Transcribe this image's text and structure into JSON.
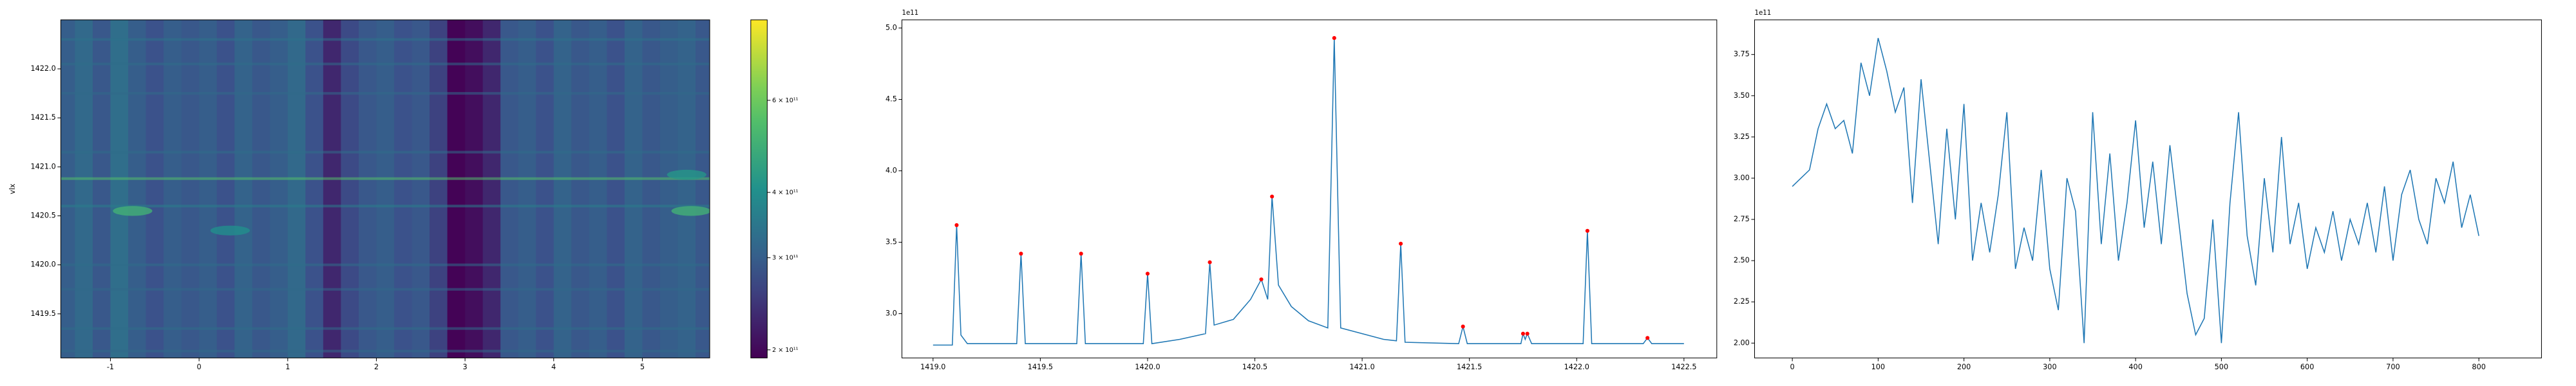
{
  "chart_data": [
    {
      "type": "heatmap",
      "ylabel": "vlx",
      "colormap": "viridis",
      "cscale": "log",
      "xlim": [
        -1.56,
        5.76
      ],
      "ylim": [
        1419.05,
        1422.5
      ],
      "xticks": [
        -1,
        0,
        1,
        2,
        3,
        4,
        5
      ],
      "yticks": [
        {
          "value": 1419.5,
          "label": "1419.5"
        },
        {
          "value": 1420.0,
          "label": "1420.0"
        },
        {
          "value": 1420.5,
          "label": "1420.5"
        },
        {
          "value": 1421.0,
          "label": "1421.0"
        },
        {
          "value": 1421.5,
          "label": "1421.5"
        },
        {
          "value": 1422.0,
          "label": "1422.0"
        }
      ],
      "clim": [
        193000000000.0,
        855000000000.0
      ],
      "cticks": [
        {
          "value": 200000000000.0,
          "label": "2 × 10¹¹"
        },
        {
          "value": 300000000000.0,
          "label": "3 × 10¹¹"
        },
        {
          "value": 400000000000.0,
          "label": "4 × 10¹¹"
        },
        {
          "value": 600000000000.0,
          "label": "6 × 10¹¹"
        }
      ],
      "columns": {
        "edges": [
          -1.6,
          -1.4,
          -1.2,
          -1.0,
          -0.8,
          -0.6,
          -0.4,
          -0.2,
          0.0,
          0.2,
          0.4,
          0.6,
          0.8,
          1.0,
          1.2,
          1.4,
          1.6,
          1.8,
          2.0,
          2.2,
          2.4,
          2.6,
          2.8,
          3.0,
          3.2,
          3.4,
          3.6,
          3.8,
          4.0,
          4.2,
          4.4,
          4.6,
          4.8,
          5.0,
          5.2,
          5.4,
          5.6,
          5.8
        ],
        "values": [
          300000000000.0,
          320000000000.0,
          290000000000.0,
          330000000000.0,
          300000000000.0,
          280000000000.0,
          300000000000.0,
          290000000000.0,
          300000000000.0,
          280000000000.0,
          310000000000.0,
          290000000000.0,
          300000000000.0,
          320000000000.0,
          280000000000.0,
          230000000000.0,
          270000000000.0,
          290000000000.0,
          300000000000.0,
          280000000000.0,
          290000000000.0,
          260000000000.0,
          195000000000.0,
          205000000000.0,
          230000000000.0,
          290000000000.0,
          300000000000.0,
          280000000000.0,
          310000000000.0,
          290000000000.0,
          300000000000.0,
          280000000000.0,
          310000000000.0,
          290000000000.0,
          300000000000.0,
          310000000000.0,
          290000000000.0
        ]
      },
      "rows": {
        "y": [
          1422.3,
          1422.05,
          1421.75,
          1421.15,
          1420.88,
          1420.6,
          1420.0,
          1419.75,
          1419.35,
          1419.12
        ],
        "values": [
          340000000000.0,
          330000000000.0,
          320000000000.0,
          330000000000.0,
          550000000000.0,
          360000000000.0,
          330000000000.0,
          320000000000.0,
          330000000000.0,
          320000000000.0
        ]
      },
      "blobs": {
        "x": [
          -0.75,
          0.35,
          5.55,
          5.5
        ],
        "y": [
          1420.55,
          1420.35,
          1420.55,
          1420.92
        ],
        "values": [
          500000000000.0,
          400000000000.0,
          500000000000.0,
          420000000000.0
        ]
      }
    },
    {
      "type": "line",
      "offset_text": "1e11",
      "xlim": [
        1418.855,
        1422.653
      ],
      "ylim": [
        269000000000.0,
        505700000000.0
      ],
      "xticks": [
        {
          "value": 1419.0,
          "label": "1419.0"
        },
        1419.5,
        {
          "value": 1420.0,
          "label": "1420.0"
        },
        1420.5,
        {
          "value": 1421.0,
          "label": "1421.0"
        },
        1421.5,
        {
          "value": 1422.0,
          "label": "1422.0"
        },
        1422.5
      ],
      "yticks": [
        {
          "value": 300000000000.0,
          "label": "3.0"
        },
        {
          "value": 350000000000.0,
          "label": "3.5"
        },
        {
          "value": 400000000000.0,
          "label": "4.0"
        },
        {
          "value": 450000000000.0,
          "label": "4.5"
        },
        {
          "value": 500000000000.0,
          "label": "5.0"
        }
      ],
      "series": [
        {
          "color": "#1f77b4",
          "mode": "line",
          "x": [
            1419.0,
            1419.09,
            1419.11,
            1419.13,
            1419.16,
            1419.39,
            1419.41,
            1419.43,
            1419.67,
            1419.69,
            1419.71,
            1419.98,
            1420.0,
            1420.02,
            1420.15,
            1420.27,
            1420.29,
            1420.31,
            1420.4,
            1420.48,
            1420.53,
            1420.56,
            1420.58,
            1420.61,
            1420.67,
            1420.75,
            1420.84,
            1420.87,
            1420.9,
            1421.0,
            1421.1,
            1421.16,
            1421.18,
            1421.2,
            1421.45,
            1421.47,
            1421.49,
            1421.74,
            1421.75,
            1421.76,
            1421.77,
            1421.79,
            1422.03,
            1422.05,
            1422.07,
            1422.31,
            1422.33,
            1422.35,
            1422.5
          ],
          "values": [
            278000000000.0,
            278000000000.0,
            362000000000.0,
            285000000000.0,
            279000000000.0,
            279000000000.0,
            342000000000.0,
            279000000000.0,
            279000000000.0,
            342000000000.0,
            279000000000.0,
            279000000000.0,
            328000000000.0,
            279000000000.0,
            282000000000.0,
            286000000000.0,
            336000000000.0,
            292000000000.0,
            296000000000.0,
            310000000000.0,
            324000000000.0,
            310000000000.0,
            382000000000.0,
            320000000000.0,
            305000000000.0,
            295000000000.0,
            290000000000.0,
            493000000000.0,
            290000000000.0,
            286000000000.0,
            282000000000.0,
            281000000000.0,
            349000000000.0,
            280000000000.0,
            279000000000.0,
            291000000000.0,
            279000000000.0,
            279000000000.0,
            286000000000.0,
            282000000000.0,
            286000000000.0,
            279000000000.0,
            279000000000.0,
            358000000000.0,
            279000000000.0,
            279000000000.0,
            283000000000.0,
            279000000000.0,
            279000000000.0
          ]
        },
        {
          "color": "red",
          "mode": "markers",
          "x": [
            1419.11,
            1419.41,
            1419.69,
            1420.0,
            1420.29,
            1420.53,
            1420.58,
            1420.87,
            1421.18,
            1421.47,
            1421.75,
            1421.77,
            1422.05,
            1422.33
          ],
          "values": [
            362000000000.0,
            342000000000.0,
            342000000000.0,
            328000000000.0,
            336000000000.0,
            324000000000.0,
            382000000000.0,
            493000000000.0,
            349000000000.0,
            291000000000.0,
            286000000000.0,
            286000000000.0,
            358000000000.0,
            283000000000.0
          ]
        }
      ]
    },
    {
      "type": "line",
      "offset_text": "1e11",
      "xlim": [
        -44,
        873
      ],
      "ylim": [
        191000000000.0,
        396000000000.0
      ],
      "xticks": [
        0,
        100,
        200,
        300,
        400,
        500,
        600,
        700,
        800
      ],
      "yticks": [
        {
          "value": 200000000000.0,
          "label": "2.00"
        },
        {
          "value": 225000000000.0,
          "label": "2.25"
        },
        {
          "value": 250000000000.0,
          "label": "2.50"
        },
        {
          "value": 275000000000.0,
          "label": "2.75"
        },
        {
          "value": 300000000000.0,
          "label": "3.00"
        },
        {
          "value": 325000000000.0,
          "label": "3.25"
        },
        {
          "value": 350000000000.0,
          "label": "3.50"
        },
        {
          "value": 375000000000.0,
          "label": "3.75"
        }
      ],
      "series": [
        {
          "color": "#1f77b4",
          "mode": "line",
          "x": [
            0,
            10,
            20,
            30,
            40,
            50,
            60,
            70,
            80,
            90,
            100,
            110,
            120,
            130,
            140,
            150,
            160,
            170,
            180,
            190,
            200,
            210,
            220,
            230,
            240,
            250,
            260,
            270,
            280,
            290,
            300,
            310,
            320,
            330,
            340,
            350,
            360,
            370,
            380,
            390,
            400,
            410,
            420,
            430,
            440,
            450,
            460,
            470,
            480,
            490,
            500,
            510,
            520,
            530,
            540,
            550,
            560,
            570,
            580,
            590,
            600,
            610,
            620,
            630,
            640,
            650,
            660,
            670,
            680,
            690,
            700,
            710,
            720,
            730,
            740,
            750,
            760,
            770,
            780,
            790,
            800
          ],
          "values": [
            295000000000.0,
            300000000000.0,
            305000000000.0,
            330000000000.0,
            345000000000.0,
            330000000000.0,
            335000000000.0,
            315000000000.0,
            370000000000.0,
            350000000000.0,
            385000000000.0,
            365000000000.0,
            340000000000.0,
            355000000000.0,
            285000000000.0,
            360000000000.0,
            310000000000.0,
            260000000000.0,
            330000000000.0,
            275000000000.0,
            345000000000.0,
            250000000000.0,
            285000000000.0,
            255000000000.0,
            290000000000.0,
            340000000000.0,
            245000000000.0,
            270000000000.0,
            250000000000.0,
            305000000000.0,
            245000000000.0,
            220000000000.0,
            300000000000.0,
            280000000000.0,
            200000000000.0,
            340000000000.0,
            260000000000.0,
            315000000000.0,
            250000000000.0,
            285000000000.0,
            335000000000.0,
            270000000000.0,
            310000000000.0,
            260000000000.0,
            320000000000.0,
            275000000000.0,
            230000000000.0,
            205000000000.0,
            215000000000.0,
            275000000000.0,
            200000000000.0,
            285000000000.0,
            340000000000.0,
            265000000000.0,
            235000000000.0,
            300000000000.0,
            255000000000.0,
            325000000000.0,
            260000000000.0,
            285000000000.0,
            245000000000.0,
            270000000000.0,
            255000000000.0,
            280000000000.0,
            250000000000.0,
            275000000000.0,
            260000000000.0,
            285000000000.0,
            255000000000.0,
            295000000000.0,
            250000000000.0,
            290000000000.0,
            305000000000.0,
            275000000000.0,
            260000000000.0,
            300000000000.0,
            285000000000.0,
            310000000000.0,
            270000000000.0,
            290000000000.0,
            265000000000.0
          ]
        }
      ]
    }
  ]
}
